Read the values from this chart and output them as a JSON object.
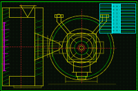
{
  "bg_color": "#070d07",
  "grid_dot_color": "#0d200d",
  "line_color_yellow": "#cccc00",
  "line_color_green": "#00cc00",
  "line_color_magenta": "#cc00cc",
  "line_color_red": "#cc2222",
  "line_color_cyan": "#00cccc",
  "table_cyan": "#00ffff",
  "figsize": [
    2.0,
    1.33
  ],
  "dpi": 100
}
